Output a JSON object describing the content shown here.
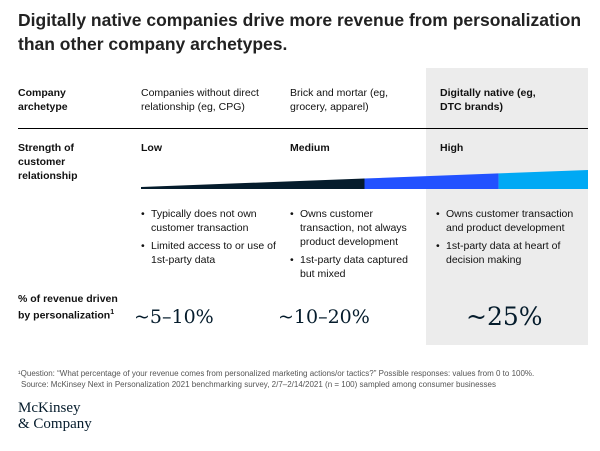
{
  "title": "Digitally native companies drive more revenue from personalization than other company archetypes.",
  "headers": {
    "row_label": "Company archetype",
    "columns": [
      "Companies without direct relationship (eg, CPG)",
      "Brick and mortar (eg, grocery, apparel)",
      "Digitally native (eg, DTC brands)"
    ]
  },
  "strength": {
    "label": "Strength of customer relationship",
    "levels": [
      "Low",
      "Medium",
      "High"
    ]
  },
  "bullets": [
    [
      "Typically does not own customer transaction",
      "Limited access to or use of 1st-party data"
    ],
    [
      "Owns customer transaction, not always product development",
      "1st-party data captured but mixed"
    ],
    [
      "Owns customer transaction and product development",
      "1st-party data at heart of decision making"
    ]
  ],
  "revenue": {
    "label": "% of revenue driven by personalization",
    "footnote_mark": "1",
    "values": [
      "~5–10%",
      "~10–20%",
      "~25%"
    ]
  },
  "chart_data": {
    "type": "table",
    "title": "Digitally native companies drive more revenue from personalization than other company archetypes.",
    "columns": [
      "Companies without direct relationship (eg, CPG)",
      "Brick and mortar (eg, grocery, apparel)",
      "Digitally native (eg, DTC brands)"
    ],
    "rows": [
      {
        "label": "Strength of customer relationship",
        "values": [
          "Low",
          "Medium",
          "High"
        ]
      },
      {
        "label": "% of revenue driven by personalization",
        "values": [
          "~5–10%",
          "~10–20%",
          "~25%"
        ]
      }
    ],
    "relationship_scale": [
      {
        "name": "Low",
        "start": 0.0,
        "end": 0.5,
        "color": "#051c2c"
      },
      {
        "name": "Medium",
        "start": 0.5,
        "end": 0.8,
        "color": "#2251ff"
      },
      {
        "name": "High",
        "start": 0.8,
        "end": 1.0,
        "color": "#00a9f4"
      }
    ]
  },
  "footnotes": {
    "note": "¹Question: “What percentage of your revenue comes from personalized marketing actions/or tactics?” Possible responses: values from 0 to 100%.",
    "source": "Source: McKinsey Next in Personalization 2021 benchmarking survey, 2/7–2/14/2021 (n = 100) sampled among consumer businesses"
  },
  "logo": {
    "line1": "McKinsey",
    "line2": "& Company"
  }
}
